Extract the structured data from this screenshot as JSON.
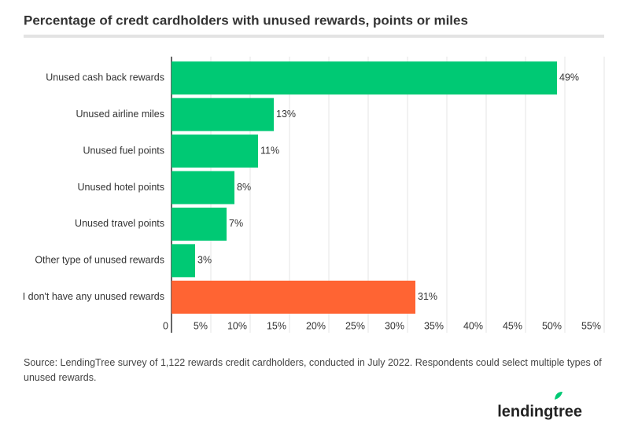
{
  "chart_data": {
    "type": "hbar",
    "title": "Percentage of credt cardholders with unused rewards, points or miles",
    "categories": [
      "Unused cash back rewards",
      "Unused airline miles",
      "Unused fuel points",
      "Unused hotel points",
      "Unused travel points",
      "Other type of unused rewards",
      "I don't have any unused rewards"
    ],
    "values": [
      49,
      13,
      11,
      8,
      7,
      3,
      31
    ],
    "value_labels": [
      "49%",
      "13%",
      "11%",
      "8%",
      "7%",
      "3%",
      "31%"
    ],
    "colors": [
      "#00c974",
      "#00c974",
      "#00c974",
      "#00c974",
      "#00c974",
      "#00c974",
      "#ff6433"
    ],
    "xlim": [
      0,
      55
    ],
    "xticks": [
      0,
      {
        "value": 5,
        "label": "5%"
      },
      {
        "value": 10,
        "label": "10%"
      },
      {
        "value": 15,
        "label": "15%"
      },
      {
        "value": 20,
        "label": "20%"
      },
      {
        "value": 25,
        "label": "25%"
      },
      {
        "value": 30,
        "label": "30%"
      },
      {
        "value": 35,
        "label": "35%"
      },
      {
        "value": 40,
        "label": "40%"
      },
      {
        "value": 45,
        "label": "45%"
      },
      {
        "value": 50,
        "label": "50%"
      },
      {
        "value": 55,
        "label": "55%"
      }
    ],
    "grid": true,
    "source": "Source: LendingTree survey of 1,122 rewards credit cardholders, conducted in July 2022. Respondents could select multiple types of unused rewards.",
    "logo": "lendingtree"
  }
}
